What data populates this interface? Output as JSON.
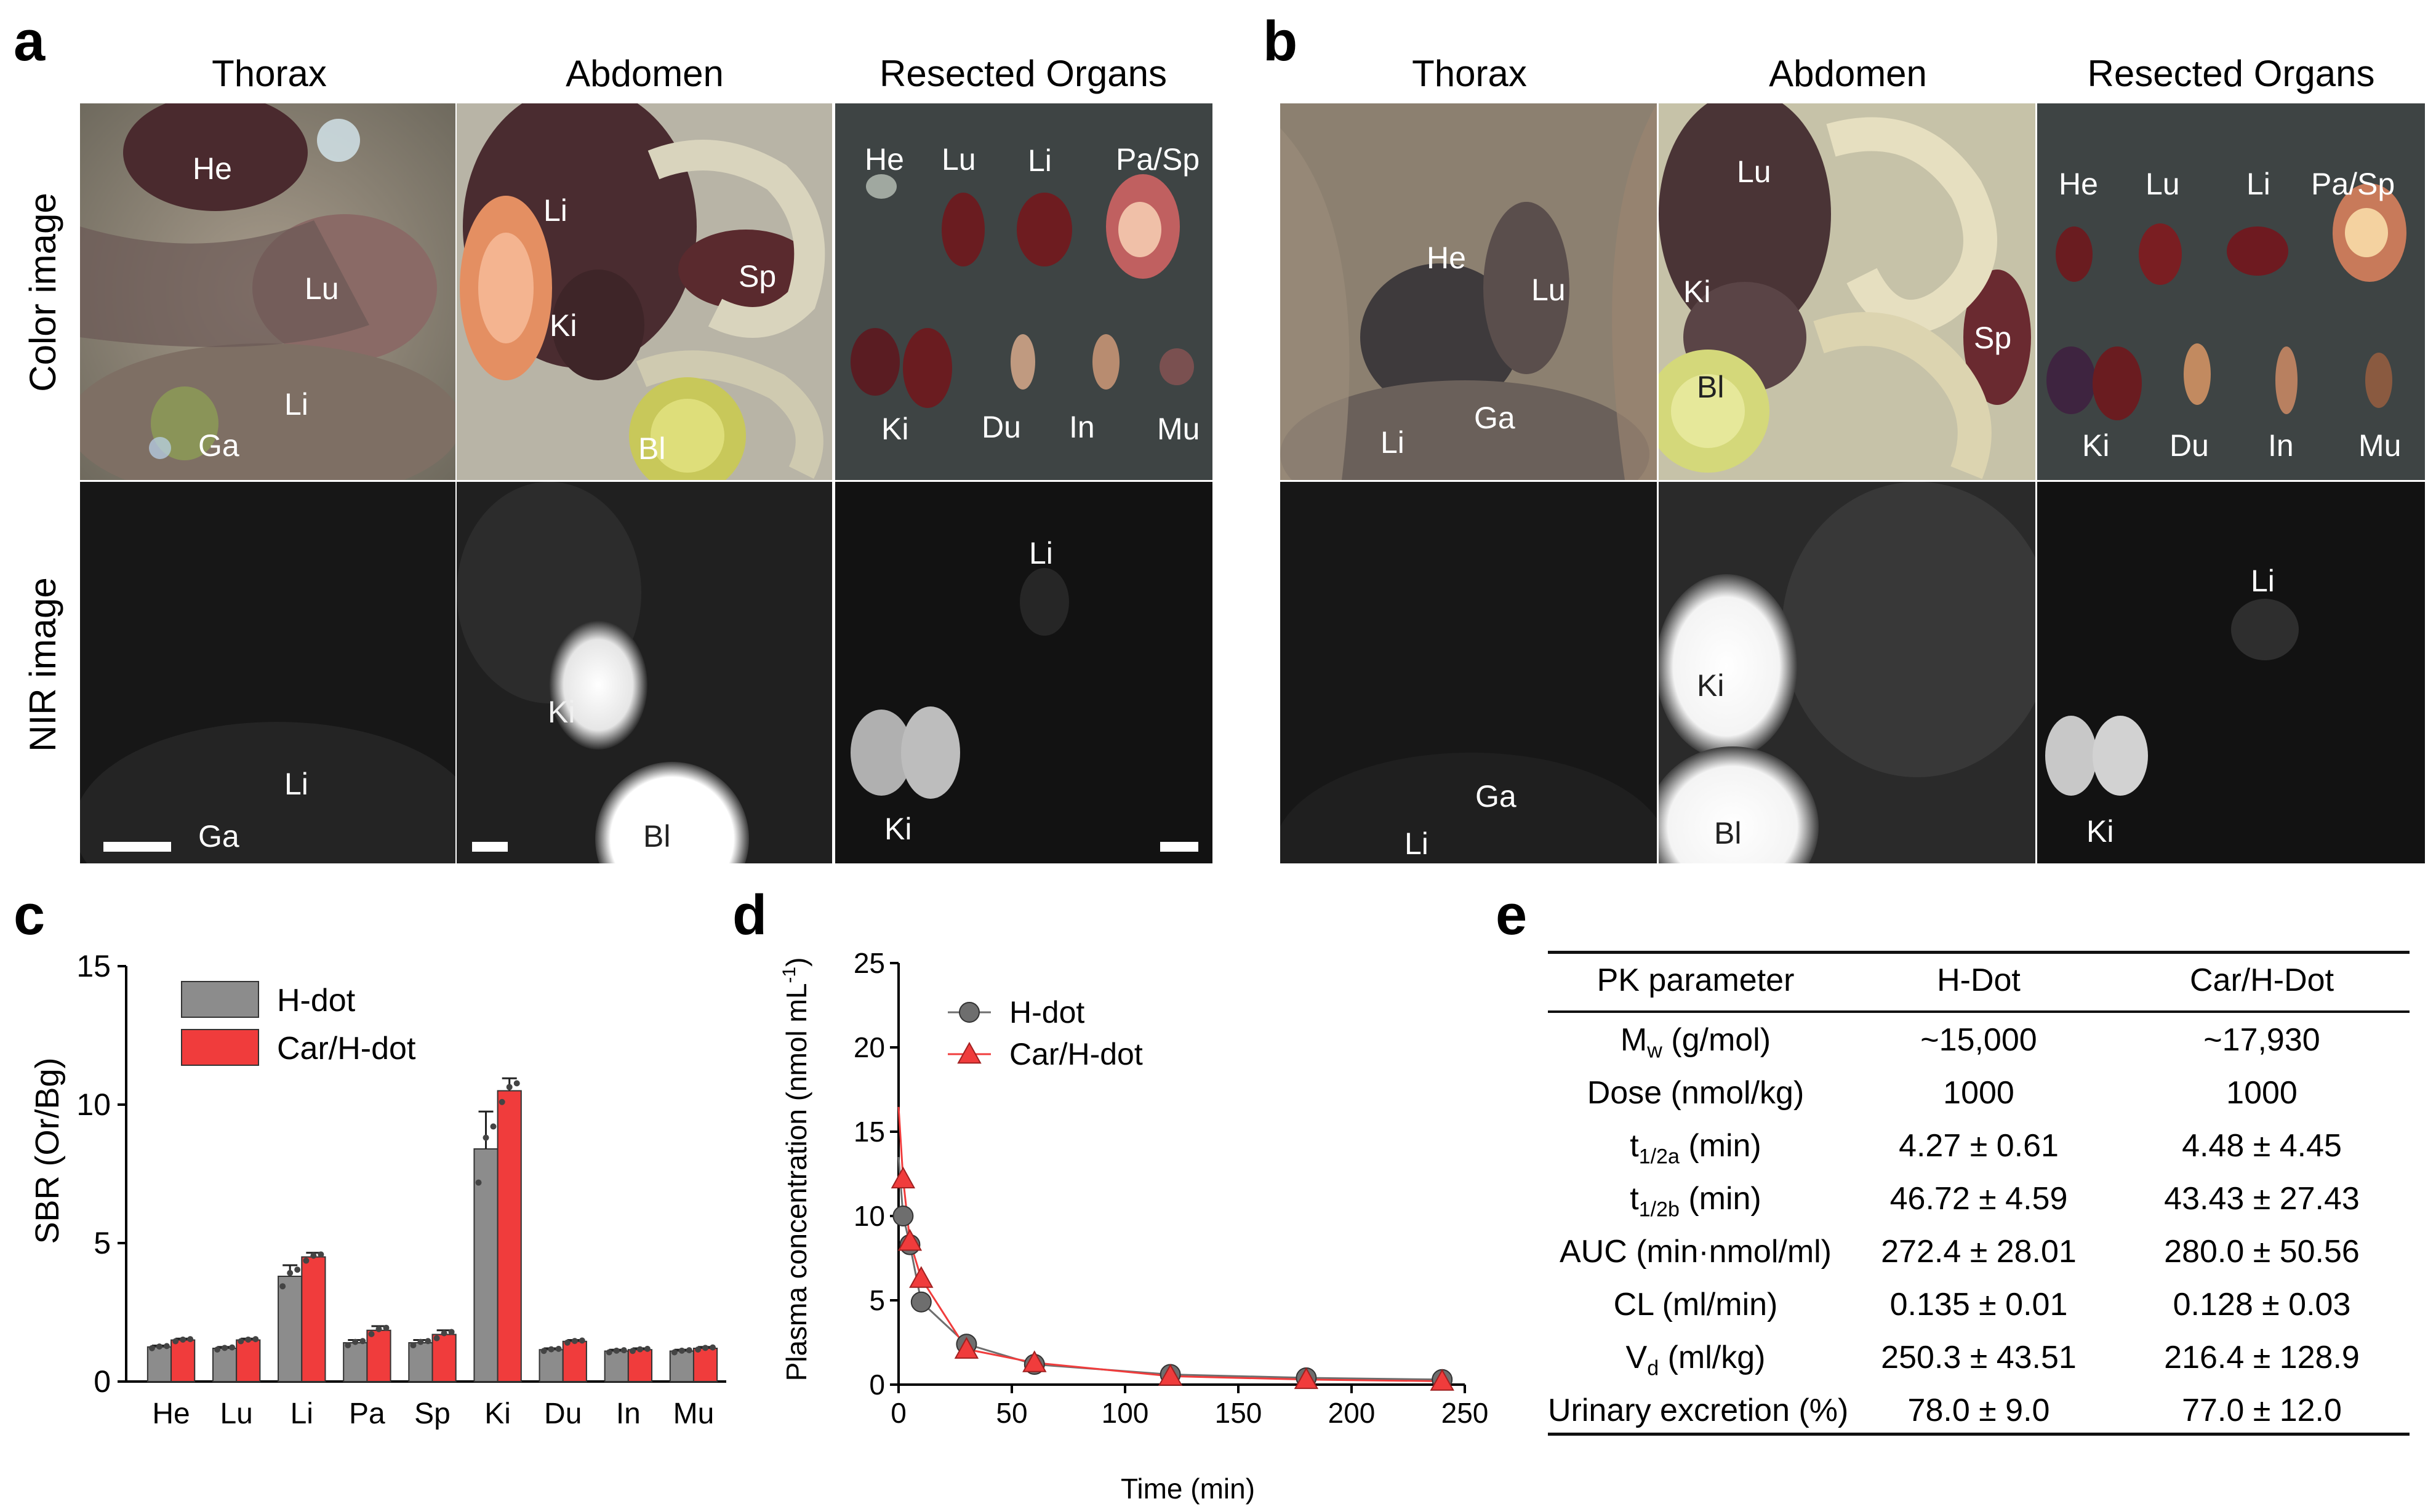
{
  "panel_labels": {
    "a": "a",
    "b": "b",
    "c": "c",
    "d": "d",
    "e": "e"
  },
  "panel_a": {
    "columns": [
      "Thorax",
      "Abdomen",
      "Resected Organs"
    ],
    "rows": [
      "Color image",
      "NIR image"
    ],
    "color_thorax": [
      "He",
      "Lu",
      "Li",
      "Ga"
    ],
    "color_abdomen": [
      "Li",
      "Ki",
      "Sp",
      "Bl"
    ],
    "color_resected": [
      "He",
      "Lu",
      "Li",
      "Pa/Sp",
      "Ki",
      "Du",
      "In",
      "Mu"
    ],
    "nir_thorax": [
      "Li",
      "Ga"
    ],
    "nir_abdomen": [
      "Ki",
      "Bl"
    ],
    "nir_resected": [
      "Li",
      "Ki"
    ]
  },
  "panel_b": {
    "columns": [
      "Thorax",
      "Abdomen",
      "Resected Organs"
    ],
    "color_thorax": [
      "He",
      "Lu",
      "Li",
      "Ga"
    ],
    "color_abdomen": [
      "Lu",
      "Ki",
      "Sp",
      "Bl"
    ],
    "color_resected": [
      "He",
      "Lu",
      "Li",
      "Pa/Sp",
      "Ki",
      "Du",
      "In",
      "Mu"
    ],
    "nir_thorax": [
      "Ga",
      "Li"
    ],
    "nir_abdomen": [
      "Ki",
      "Bl"
    ],
    "nir_resected": [
      "Li",
      "Ki"
    ]
  },
  "chart_data": [
    {
      "type": "bar",
      "panel": "c",
      "categories": [
        "He",
        "Lu",
        "Li",
        "Pa",
        "Sp",
        "Ki",
        "Du",
        "In",
        "Mu"
      ],
      "series": [
        {
          "name": "H-dot",
          "color": "#8c8c8c",
          "values": [
            1.25,
            1.2,
            3.8,
            1.4,
            1.4,
            8.4,
            1.15,
            1.1,
            1.1
          ],
          "errors": [
            0.05,
            0.05,
            0.4,
            0.1,
            0.1,
            1.35,
            0.05,
            0.05,
            0.05
          ]
        },
        {
          "name": "Car/H-dot",
          "color": "#f03c3c",
          "values": [
            1.5,
            1.5,
            4.5,
            1.85,
            1.7,
            10.5,
            1.45,
            1.15,
            1.2
          ],
          "errors": [
            0.05,
            0.05,
            0.15,
            0.15,
            0.15,
            0.45,
            0.05,
            0.05,
            0.05
          ]
        }
      ],
      "ylabel": "SBR (Or/Bg)",
      "ylim": [
        0,
        15
      ],
      "yticks": [
        0,
        5,
        10,
        15
      ],
      "legend": "top-left"
    },
    {
      "type": "scatter",
      "panel": "d",
      "series": [
        {
          "name": "H-dot",
          "color": "#6e6e6e",
          "marker": "circle",
          "x": [
            2,
            5,
            10,
            30,
            60,
            120,
            180,
            240
          ],
          "y": [
            10,
            8.3,
            4.9,
            2.4,
            1.2,
            0.6,
            0.4,
            0.3
          ]
        },
        {
          "name": "Car/H-dot",
          "color": "#f03c3c",
          "marker": "triangle",
          "x": [
            2,
            5,
            10,
            30,
            60,
            120,
            180,
            240
          ],
          "y": [
            12.2,
            8.5,
            6.3,
            2.1,
            1.3,
            0.5,
            0.3,
            0.2
          ]
        }
      ],
      "xlabel": "Time (min)",
      "ylabel": "Plasma concentration (nmol mL⁻¹)",
      "ylabel_main": "Plasma concentration (nmol mL",
      "ylabel_sup": "-1",
      "ylabel_close": ")",
      "xlim": [
        0,
        250
      ],
      "ylim": [
        0,
        25
      ],
      "xticks": [
        0,
        50,
        100,
        150,
        200,
        250
      ],
      "yticks": [
        0,
        5,
        10,
        15,
        20,
        25
      ],
      "legend": "top-left"
    }
  ],
  "table_e": {
    "headers": [
      "PK parameter",
      "H-Dot",
      "Car/H-Dot"
    ],
    "rows": [
      {
        "param": "M",
        "sub": "w",
        "unit": " (g/mol)",
        "h": "~15,000",
        "c": "~17,930"
      },
      {
        "param": "Dose (nmol/kg)",
        "sub": "",
        "unit": "",
        "h": "1000",
        "c": "1000"
      },
      {
        "param": "t",
        "sub": "1/2a",
        "unit": " (min)",
        "h": "4.27 ± 0.61",
        "c": "4.48 ± 4.45"
      },
      {
        "param": "t",
        "sub": "1/2b",
        "unit": " (min)",
        "h": "46.72 ± 4.59",
        "c": "43.43 ± 27.43"
      },
      {
        "param": "AUC (min·nmol/ml)",
        "sub": "",
        "unit": "",
        "h": "272.4 ± 28.01",
        "c": "280.0 ± 50.56"
      },
      {
        "param": "CL (ml/min)",
        "sub": "",
        "unit": "",
        "h": "0.135 ± 0.01",
        "c": "0.128 ± 0.03"
      },
      {
        "param": "V",
        "sub": "d",
        "unit": " (ml/kg)",
        "h": "250.3 ± 43.51",
        "c": "216.4 ± 128.9"
      },
      {
        "param": "Urinary excretion (%)",
        "sub": "",
        "unit": "",
        "h": "78.0 ± 9.0",
        "c": "77.0 ± 12.0"
      }
    ]
  }
}
